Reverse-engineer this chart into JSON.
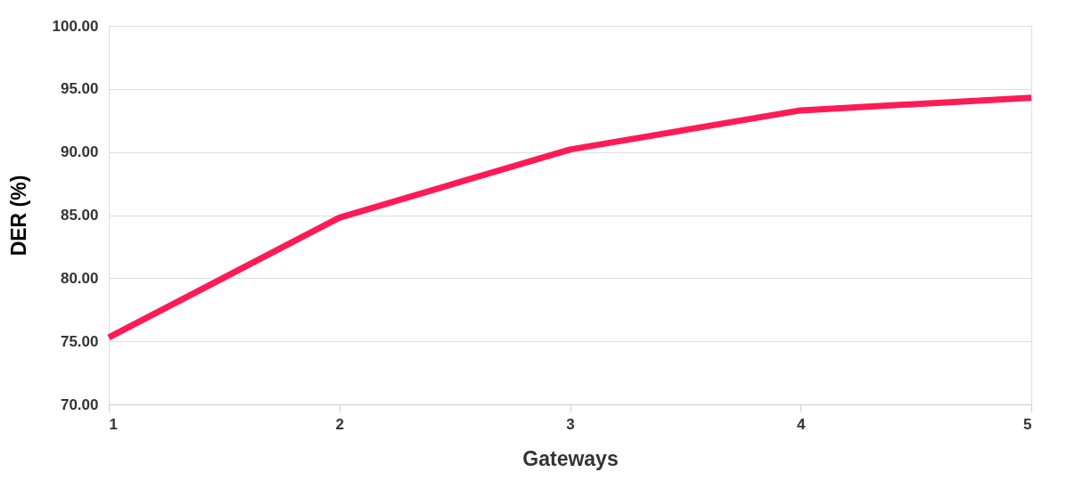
{
  "chart_data": {
    "type": "line",
    "xlabel": "Gateways",
    "ylabel": "DER (%)",
    "categories": [
      "1",
      "2",
      "3",
      "4",
      "5"
    ],
    "series": [
      {
        "color": "#fe1b55",
        "values": [
          75.3,
          84.8,
          90.2,
          93.3,
          94.3
        ]
      }
    ],
    "ylim": [
      70,
      100
    ],
    "yticks": [
      {
        "value": 70,
        "label": "70.00"
      },
      {
        "value": 75,
        "label": "75.00"
      },
      {
        "value": 80,
        "label": "80.00"
      },
      {
        "value": 85,
        "label": "85.00"
      },
      {
        "value": 90,
        "label": "90.00"
      },
      {
        "value": 95,
        "label": "95.00"
      },
      {
        "value": 100,
        "label": "100.00"
      }
    ],
    "grid": "y",
    "legend": false,
    "marker": "none",
    "line_style": "solid"
  }
}
